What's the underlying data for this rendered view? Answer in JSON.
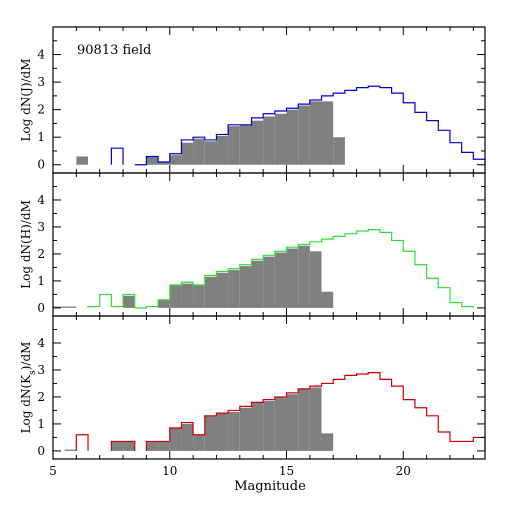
{
  "figure": {
    "annotation": "90813 field",
    "xlabel": "Magnitude"
  },
  "chart_data": [
    {
      "type": "bar",
      "ylabel": "Log dN(J)/dM",
      "xlim": [
        5,
        23.5
      ],
      "ylim": [
        -0.3,
        5
      ],
      "x_ticks": [
        5,
        10,
        15,
        20
      ],
      "y_ticks": [
        0,
        1,
        2,
        3,
        4
      ],
      "bin_width": 0.5,
      "filled_series": {
        "bins": [
          [
            6.0,
            0.3
          ],
          [
            8.5,
            0
          ],
          [
            9.0,
            0.3
          ],
          [
            9.5,
            0.1
          ],
          [
            10.0,
            0.35
          ],
          [
            10.5,
            0.8
          ],
          [
            11.0,
            0.95
          ],
          [
            11.5,
            0.85
          ],
          [
            12.0,
            1.05
          ],
          [
            12.5,
            1.4
          ],
          [
            13.0,
            1.45
          ],
          [
            13.5,
            1.6
          ],
          [
            14.0,
            1.75
          ],
          [
            14.5,
            1.85
          ],
          [
            15.0,
            2.0
          ],
          [
            15.5,
            2.15
          ],
          [
            16.0,
            2.3
          ],
          [
            16.5,
            2.3
          ],
          [
            17.0,
            1.0
          ]
        ]
      },
      "line_series": {
        "color": "#0000cc",
        "bins": [
          [
            7.5,
            0.6
          ],
          [
            8.5,
            0
          ],
          [
            9.0,
            0.3
          ],
          [
            9.5,
            0.1
          ],
          [
            10.0,
            0.4
          ],
          [
            10.5,
            0.9
          ],
          [
            11.0,
            1.0
          ],
          [
            11.5,
            0.9
          ],
          [
            12.0,
            1.1
          ],
          [
            12.5,
            1.45
          ],
          [
            13.0,
            1.45
          ],
          [
            13.5,
            1.7
          ],
          [
            14.0,
            1.85
          ],
          [
            14.5,
            1.95
          ],
          [
            15.0,
            2.05
          ],
          [
            15.5,
            2.2
          ],
          [
            16.0,
            2.35
          ],
          [
            16.5,
            2.5
          ],
          [
            17.0,
            2.6
          ],
          [
            17.5,
            2.7
          ],
          [
            18.0,
            2.8
          ],
          [
            18.5,
            2.85
          ],
          [
            19.0,
            2.8
          ],
          [
            19.5,
            2.6
          ],
          [
            20.0,
            2.25
          ],
          [
            20.5,
            1.9
          ],
          [
            21.0,
            1.6
          ],
          [
            21.5,
            1.25
          ],
          [
            22.0,
            0.8
          ],
          [
            22.5,
            0.45
          ],
          [
            23.0,
            0.2
          ]
        ]
      }
    },
    {
      "type": "bar",
      "ylabel": "Log dN(H)/dM",
      "xlim": [
        5,
        23.5
      ],
      "ylim": [
        -0.3,
        5
      ],
      "x_ticks": [
        5,
        10,
        15,
        20
      ],
      "y_ticks": [
        0,
        1,
        2,
        3,
        4
      ],
      "bin_width": 0.5,
      "filled_series": {
        "bins": [
          [
            5.0,
            0.05
          ],
          [
            5.5,
            0.05
          ],
          [
            8.0,
            0.45
          ],
          [
            9.5,
            0.3
          ],
          [
            10.0,
            0.85
          ],
          [
            10.5,
            0.9
          ],
          [
            11.0,
            0.85
          ],
          [
            11.5,
            1.15
          ],
          [
            12.0,
            1.3
          ],
          [
            12.5,
            1.4
          ],
          [
            13.0,
            1.55
          ],
          [
            13.5,
            1.75
          ],
          [
            14.0,
            1.9
          ],
          [
            14.5,
            2.05
          ],
          [
            15.0,
            2.2
          ],
          [
            15.5,
            2.3
          ],
          [
            16.0,
            2.1
          ],
          [
            16.5,
            0.6
          ]
        ]
      },
      "line_series": {
        "color": "#33dd33",
        "bins": [
          [
            6.5,
            0.05
          ],
          [
            7.0,
            0.5
          ],
          [
            7.5,
            0.05
          ],
          [
            8.0,
            0.5
          ],
          [
            8.5,
            0
          ],
          [
            9.0,
            0.05
          ],
          [
            9.5,
            0.3
          ],
          [
            10.0,
            0.85
          ],
          [
            10.5,
            0.95
          ],
          [
            11.0,
            0.85
          ],
          [
            11.5,
            1.2
          ],
          [
            12.0,
            1.35
          ],
          [
            12.5,
            1.45
          ],
          [
            13.0,
            1.6
          ],
          [
            13.5,
            1.8
          ],
          [
            14.0,
            1.95
          ],
          [
            14.5,
            2.1
          ],
          [
            15.0,
            2.25
          ],
          [
            15.5,
            2.35
          ],
          [
            16.0,
            2.45
          ],
          [
            16.5,
            2.55
          ],
          [
            17.0,
            2.65
          ],
          [
            17.5,
            2.75
          ],
          [
            18.0,
            2.85
          ],
          [
            18.5,
            2.9
          ],
          [
            19.0,
            2.8
          ],
          [
            19.5,
            2.5
          ],
          [
            20.0,
            2.1
          ],
          [
            20.5,
            1.6
          ],
          [
            21.0,
            1.1
          ],
          [
            21.5,
            0.75
          ],
          [
            22.0,
            0.2
          ],
          [
            22.5,
            0.05
          ]
        ]
      }
    },
    {
      "type": "bar",
      "ylabel": "Log dN(K_s)/dM",
      "xlim": [
        5,
        23.5
      ],
      "ylim": [
        -0.3,
        5
      ],
      "x_ticks": [
        5,
        10,
        15,
        20
      ],
      "y_ticks": [
        0,
        1,
        2,
        3,
        4
      ],
      "bin_width": 0.5,
      "filled_series": {
        "bins": [
          [
            5.5,
            0.05
          ],
          [
            7.5,
            0.35
          ],
          [
            8.0,
            0.35
          ],
          [
            9.0,
            0.35
          ],
          [
            9.5,
            0.35
          ],
          [
            10.0,
            0.85
          ],
          [
            10.5,
            1.0
          ],
          [
            11.0,
            0.6
          ],
          [
            11.5,
            1.3
          ],
          [
            12.0,
            1.4
          ],
          [
            12.5,
            1.45
          ],
          [
            13.0,
            1.6
          ],
          [
            13.5,
            1.8
          ],
          [
            14.0,
            1.85
          ],
          [
            14.5,
            2.0
          ],
          [
            15.0,
            2.1
          ],
          [
            15.5,
            2.3
          ],
          [
            16.0,
            2.35
          ],
          [
            16.5,
            0.65
          ]
        ]
      },
      "line_series": {
        "color": "#cc0000",
        "bins": [
          [
            6.0,
            0.6
          ],
          [
            7.5,
            0.35
          ],
          [
            8.0,
            0.35
          ],
          [
            9.0,
            0.35
          ],
          [
            9.5,
            0.35
          ],
          [
            10.0,
            0.85
          ],
          [
            10.5,
            1.05
          ],
          [
            11.0,
            0.6
          ],
          [
            11.5,
            1.3
          ],
          [
            12.0,
            1.4
          ],
          [
            12.5,
            1.5
          ],
          [
            13.0,
            1.65
          ],
          [
            13.5,
            1.8
          ],
          [
            14.0,
            1.9
          ],
          [
            14.5,
            2.0
          ],
          [
            15.0,
            2.15
          ],
          [
            15.5,
            2.3
          ],
          [
            16.0,
            2.4
          ],
          [
            16.5,
            2.5
          ],
          [
            17.0,
            2.65
          ],
          [
            17.5,
            2.8
          ],
          [
            18.0,
            2.85
          ],
          [
            18.5,
            2.9
          ],
          [
            19.0,
            2.65
          ],
          [
            19.5,
            2.4
          ],
          [
            20.0,
            1.9
          ],
          [
            20.5,
            1.6
          ],
          [
            21.0,
            1.3
          ],
          [
            21.5,
            0.7
          ],
          [
            22.0,
            0.35
          ],
          [
            22.5,
            0.35
          ],
          [
            23.0,
            0.5
          ]
        ]
      }
    }
  ]
}
